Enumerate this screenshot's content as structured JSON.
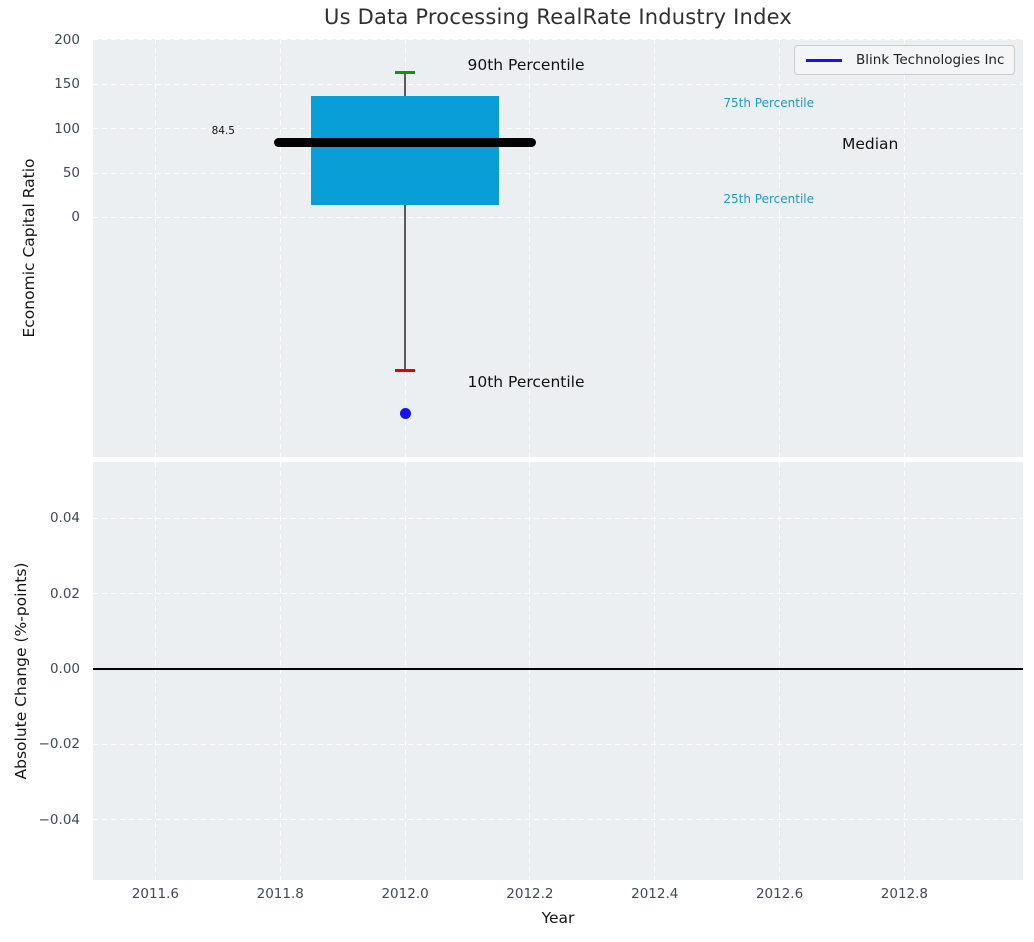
{
  "colors": {
    "axes_background": "#eceff1",
    "grid": "#ffffff",
    "box_fill": "#0a9ed9",
    "median_line": "#000000",
    "whisker": "#5a5a5a",
    "p90_cap": "#129212",
    "p10_cap": "#e60000",
    "company": "#1414f0",
    "percentile_text": "#1b9ac9",
    "tick_text": "#3d4a5c",
    "zero_line": "#000000"
  },
  "chart_data": [
    {
      "type": "boxplot",
      "title": "Us Data Processing RealRate Industry Index",
      "ylabel": "Economic Capital Ratio",
      "xlim": [
        2011.5,
        2012.99
      ],
      "ylim": [
        -270,
        201
      ],
      "grid": true,
      "ytick_values": [
        0,
        50,
        100,
        150,
        200
      ],
      "ytick_labels": [
        "0",
        "50",
        "100",
        "150",
        "200"
      ],
      "xtick_values": [
        2011.6,
        2011.8,
        2012.0,
        2012.2,
        2012.4,
        2012.6,
        2012.8
      ],
      "legend": {
        "label": "Blink Technologies Inc",
        "position": "upper right"
      },
      "box": {
        "x": 2012.0,
        "p10": -173,
        "p25": 14,
        "median": 84.5,
        "p75": 137,
        "p90": 163,
        "box_half_width": 0.15,
        "median_half_width": 0.21,
        "cap_half_width": 0.016
      },
      "median_value_label": "84.5",
      "company_point": {
        "label": "Blink Technologies Inc",
        "x": 2012.0,
        "y": -221
      },
      "annotations": [
        {
          "text": "90th Percentile",
          "x": 2012.1,
          "y": 172,
          "style": "callout"
        },
        {
          "text": "10th Percentile",
          "x": 2012.1,
          "y": -185,
          "style": "callout"
        },
        {
          "text": "75th Percentile",
          "x": 2012.51,
          "y": 129,
          "style": "percentile"
        },
        {
          "text": "25th Percentile",
          "x": 2012.51,
          "y": 21,
          "style": "percentile"
        },
        {
          "text": "Median",
          "x": 2012.7,
          "y": 83,
          "style": "callout"
        },
        {
          "text": "84.5",
          "x": 2011.69,
          "y": 97,
          "style": "value"
        }
      ]
    },
    {
      "type": "line",
      "ylabel": "Absolute Change (%-points)",
      "xlabel": "Year",
      "xlim": [
        2011.5,
        2012.99
      ],
      "ylim": [
        -0.056,
        0.055
      ],
      "grid": true,
      "ytick_values": [
        -0.04,
        -0.02,
        0.0,
        0.02,
        0.04
      ],
      "ytick_labels": [
        "−0.04",
        "−0.02",
        "0.00",
        "0.02",
        "0.04"
      ],
      "xtick_values": [
        2011.6,
        2011.8,
        2012.0,
        2012.2,
        2012.4,
        2012.6,
        2012.8
      ],
      "xtick_labels": [
        "2011.6",
        "2011.8",
        "2012.0",
        "2012.2",
        "2012.4",
        "2012.6",
        "2012.8"
      ],
      "zero_line_y": 0.0,
      "series": []
    }
  ]
}
